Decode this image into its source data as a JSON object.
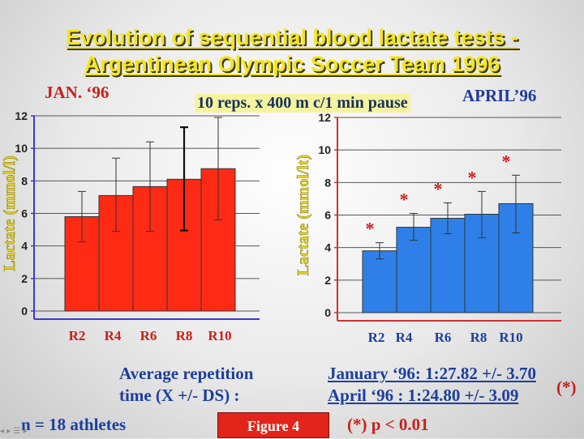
{
  "slide": {
    "title_line1": "Evolution of sequential blood lactate tests -",
    "title_line2": "Argentinean Olympic Soccer Team 1996",
    "protocol": "10 reps. x 400 m c/1 min pause",
    "left_period": "JAN. ‘96",
    "right_period": "APRIL’96",
    "avg_label_line1": "Average repetition",
    "avg_label_line2": "time (X +/- DS) :",
    "time_january": "January ‘96: 1:27.82 +/- 3.70",
    "time_april": "April ‘96 :  1:24.80 +/- 3.09",
    "sig_mark": "(*)",
    "athletes": "n = 18 athletes",
    "figure_label": "Figure 4",
    "p_note": "(*) p < 0.01",
    "nav_icons": "◂ ▸ ☰ ▸"
  },
  "chart_data": [
    {
      "type": "bar",
      "period": "JAN. ‘96",
      "categories": [
        "R2",
        "R4",
        "R6",
        "R8",
        "R10"
      ],
      "values": [
        5.8,
        7.1,
        7.65,
        8.1,
        8.75
      ],
      "error_low": [
        4.25,
        4.9,
        4.9,
        4.95,
        5.6
      ],
      "error_high": [
        7.35,
        9.4,
        10.4,
        11.3,
        11.9
      ],
      "ylabel": "Lactate (mmol/l)",
      "ylim": [
        0,
        12
      ],
      "yticks": [
        0,
        2,
        4,
        6,
        8,
        10,
        12
      ],
      "grid": true,
      "color": "#ff2a14",
      "significant": [
        false,
        false,
        false,
        false,
        false
      ]
    },
    {
      "type": "bar",
      "period": "APRIL’96",
      "categories": [
        "R2",
        "R4",
        "R6",
        "R8",
        "R10"
      ],
      "values": [
        3.8,
        5.25,
        5.8,
        6.05,
        6.7
      ],
      "error_low": [
        3.3,
        4.45,
        4.85,
        4.6,
        4.9
      ],
      "error_high": [
        4.3,
        6.1,
        6.75,
        7.45,
        8.45
      ],
      "ylabel": "Lactate (mmol/lt)",
      "ylim": [
        0,
        12
      ],
      "yticks": [
        0,
        2,
        4,
        6,
        8,
        10,
        12
      ],
      "grid": true,
      "color": "#2e80e8",
      "significant": [
        true,
        true,
        true,
        true,
        true
      ],
      "sig_symbol": "*"
    }
  ]
}
